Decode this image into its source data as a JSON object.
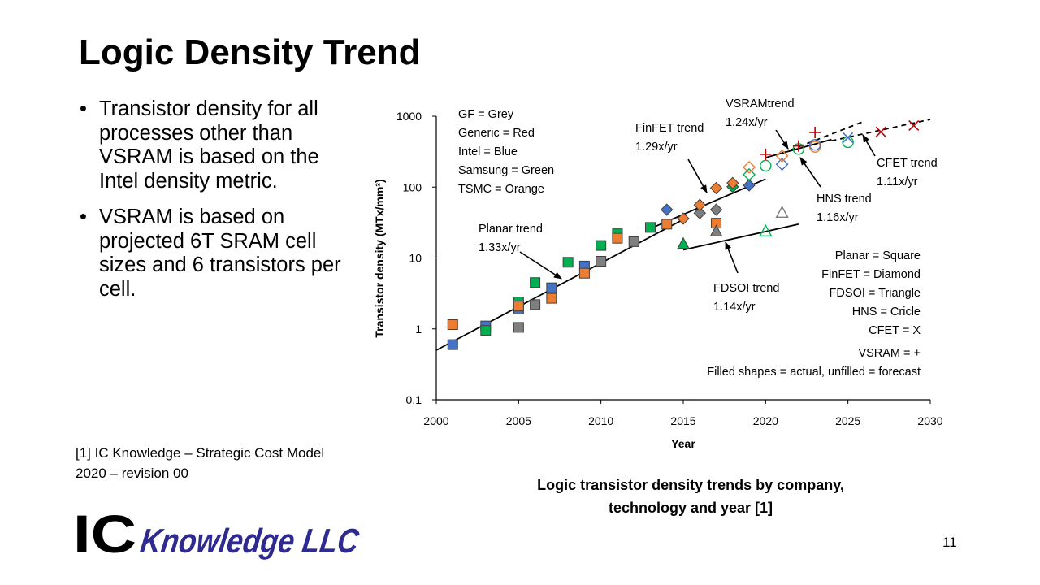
{
  "slide": {
    "title": "Logic Density Trend",
    "bullets": [
      "Transistor density for all processes other than VSRAM is based on the Intel density metric.",
      "VSRAM is based on projected 6T SRAM cell sizes and 6 transistors per cell."
    ],
    "reference": [
      "[1] IC Knowledge – Strategic Cost Model",
      "2020 – revision 00"
    ],
    "caption": [
      "Logic transistor density trends by company,",
      "technology and year [1]"
    ],
    "page_number": "11",
    "logo": {
      "part1": "IC",
      "part2": "Knowledge LLC",
      "color_ic": "#000000",
      "color_rest": "#2e2a8f"
    }
  },
  "chart_data": {
    "type": "scatter",
    "xlabel": "Year",
    "ylabel": "Transistor density (MTx/mm²)",
    "xlim": [
      2000,
      2030
    ],
    "ylim": [
      0.1,
      1000
    ],
    "yscale": "log",
    "x_ticks": [
      "2000",
      "2005",
      "2010",
      "2015",
      "2020",
      "2025",
      "2030"
    ],
    "y_ticks": [
      "0.1",
      "1",
      "10",
      "100",
      "1000"
    ],
    "colors": {
      "Grey": "#7f7f7f",
      "Red": "#c00000",
      "Blue": "#4472c4",
      "Green": "#00b050",
      "Orange": "#ed7d31"
    },
    "legend_company": [
      "GF = Grey",
      "Generic = Red",
      "Intel = Blue",
      "Samsung = Green",
      "TSMC = Orange"
    ],
    "legend_shapes": [
      "Planar = Square",
      "FinFET = Diamond",
      "FDSOI = Triangle",
      "HNS = Cricle",
      "CFET = X",
      "VSRAM = +",
      "Filled shapes = actual, unfilled = forecast"
    ],
    "trends": [
      {
        "label": [
          "Planar trend",
          "1.33x/yr"
        ],
        "style": "solid",
        "x": [
          2000,
          2015
        ],
        "y": [
          0.5,
          35
        ]
      },
      {
        "label": [
          "FinFET trend",
          "1.29x/yr"
        ],
        "style": "solid",
        "x": [
          2013,
          2020
        ],
        "y": [
          26,
          130
        ]
      },
      {
        "label": [
          "FDSOI trend",
          "1.14x/yr"
        ],
        "style": "solid",
        "x": [
          2015,
          2022
        ],
        "y": [
          13,
          30
        ]
      },
      {
        "label": [
          "VSRAMtrend",
          "1.24x/yr"
        ],
        "style": "dashed",
        "x": [
          2021,
          2026
        ],
        "y": [
          300,
          850
        ]
      },
      {
        "label": [
          "HNS trend",
          "1.16x/yr"
        ],
        "style": "solid",
        "x": [
          2020,
          2024
        ],
        "y": [
          260,
          470
        ]
      },
      {
        "label": [
          "CFET trend",
          "1.11x/yr"
        ],
        "style": "dashed",
        "x": [
          2024,
          2030
        ],
        "y": [
          450,
          900
        ]
      }
    ],
    "points": [
      {
        "x": 2001,
        "y": 0.6,
        "shape": "square",
        "color": "Blue",
        "filled": true
      },
      {
        "x": 2001,
        "y": 1.15,
        "shape": "square",
        "color": "Orange",
        "filled": true
      },
      {
        "x": 2003,
        "y": 1.1,
        "shape": "square",
        "color": "Blue",
        "filled": true
      },
      {
        "x": 2003,
        "y": 0.95,
        "shape": "square",
        "color": "Green",
        "filled": true
      },
      {
        "x": 2005,
        "y": 1.05,
        "shape": "square",
        "color": "Grey",
        "filled": true
      },
      {
        "x": 2005,
        "y": 1.9,
        "shape": "square",
        "color": "Blue",
        "filled": true
      },
      {
        "x": 2005,
        "y": 2.4,
        "shape": "square",
        "color": "Green",
        "filled": true
      },
      {
        "x": 2005,
        "y": 2.1,
        "shape": "square",
        "color": "Orange",
        "filled": true
      },
      {
        "x": 2006,
        "y": 2.2,
        "shape": "square",
        "color": "Grey",
        "filled": true
      },
      {
        "x": 2006,
        "y": 4.5,
        "shape": "square",
        "color": "Green",
        "filled": true
      },
      {
        "x": 2007,
        "y": 3.8,
        "shape": "square",
        "color": "Blue",
        "filled": true
      },
      {
        "x": 2007,
        "y": 2.7,
        "shape": "square",
        "color": "Orange",
        "filled": true
      },
      {
        "x": 2008,
        "y": 8.7,
        "shape": "square",
        "color": "Green",
        "filled": true
      },
      {
        "x": 2009,
        "y": 7.7,
        "shape": "square",
        "color": "Blue",
        "filled": true
      },
      {
        "x": 2009,
        "y": 6.1,
        "shape": "square",
        "color": "Orange",
        "filled": true
      },
      {
        "x": 2010,
        "y": 9.0,
        "shape": "square",
        "color": "Grey",
        "filled": true
      },
      {
        "x": 2010,
        "y": 15,
        "shape": "square",
        "color": "Green",
        "filled": true
      },
      {
        "x": 2011,
        "y": 22,
        "shape": "square",
        "color": "Green",
        "filled": true
      },
      {
        "x": 2011,
        "y": 19,
        "shape": "square",
        "color": "Orange",
        "filled": true
      },
      {
        "x": 2012,
        "y": 17,
        "shape": "square",
        "color": "Grey",
        "filled": true
      },
      {
        "x": 2013,
        "y": 27,
        "shape": "square",
        "color": "Green",
        "filled": true
      },
      {
        "x": 2014,
        "y": 30,
        "shape": "square",
        "color": "Orange",
        "filled": true
      },
      {
        "x": 2017,
        "y": 31,
        "shape": "square",
        "color": "Orange",
        "filled": true
      },
      {
        "x": 2014,
        "y": 48,
        "shape": "diamond",
        "color": "Blue",
        "filled": true
      },
      {
        "x": 2015,
        "y": 36,
        "shape": "diamond",
        "color": "Orange",
        "filled": true
      },
      {
        "x": 2016,
        "y": 43,
        "shape": "diamond",
        "color": "Grey",
        "filled": true
      },
      {
        "x": 2016,
        "y": 56,
        "shape": "diamond",
        "color": "Orange",
        "filled": true
      },
      {
        "x": 2017,
        "y": 48,
        "shape": "diamond",
        "color": "Grey",
        "filled": true
      },
      {
        "x": 2017,
        "y": 97,
        "shape": "diamond",
        "color": "Orange",
        "filled": true
      },
      {
        "x": 2018,
        "y": 101,
        "shape": "diamond",
        "color": "Green",
        "filled": true
      },
      {
        "x": 2018,
        "y": 114,
        "shape": "diamond",
        "color": "Orange",
        "filled": true
      },
      {
        "x": 2019,
        "y": 106,
        "shape": "diamond",
        "color": "Blue",
        "filled": true
      },
      {
        "x": 2019,
        "y": 150,
        "shape": "diamond",
        "color": "Green",
        "filled": false
      },
      {
        "x": 2019,
        "y": 190,
        "shape": "diamond",
        "color": "Orange",
        "filled": false
      },
      {
        "x": 2021,
        "y": 210,
        "shape": "diamond",
        "color": "Blue",
        "filled": false
      },
      {
        "x": 2021,
        "y": 275,
        "shape": "diamond",
        "color": "Orange",
        "filled": false
      },
      {
        "x": 2015,
        "y": 16,
        "shape": "triangle",
        "color": "Green",
        "filled": true
      },
      {
        "x": 2017,
        "y": 24,
        "shape": "triangle",
        "color": "Grey",
        "filled": true
      },
      {
        "x": 2020,
        "y": 24,
        "shape": "triangle",
        "color": "Green",
        "filled": false
      },
      {
        "x": 2021,
        "y": 44,
        "shape": "triangle",
        "color": "Grey",
        "filled": false
      },
      {
        "x": 2020,
        "y": 200,
        "shape": "circle",
        "color": "Green",
        "filled": false
      },
      {
        "x": 2022,
        "y": 345,
        "shape": "circle",
        "color": "Green",
        "filled": false
      },
      {
        "x": 2023,
        "y": 370,
        "shape": "circle",
        "color": "Orange",
        "filled": false
      },
      {
        "x": 2023,
        "y": 395,
        "shape": "circle",
        "color": "Blue",
        "filled": false
      },
      {
        "x": 2025,
        "y": 430,
        "shape": "circle",
        "color": "Green",
        "filled": false
      },
      {
        "x": 2025,
        "y": 500,
        "shape": "x",
        "color": "Blue",
        "filled": false
      },
      {
        "x": 2027,
        "y": 600,
        "shape": "x",
        "color": "Red",
        "filled": false
      },
      {
        "x": 2029,
        "y": 740,
        "shape": "x",
        "color": "Red",
        "filled": false
      },
      {
        "x": 2020,
        "y": 290,
        "shape": "plus",
        "color": "Red",
        "filled": false
      },
      {
        "x": 2022,
        "y": 380,
        "shape": "plus",
        "color": "Red",
        "filled": false
      },
      {
        "x": 2023,
        "y": 590,
        "shape": "plus",
        "color": "Red",
        "filled": false
      }
    ]
  }
}
